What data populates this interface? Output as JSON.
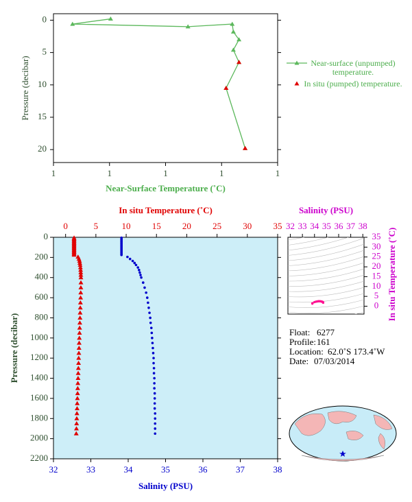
{
  "chart_data": [
    {
      "type": "line",
      "x_label": "Near-Surface Temperature (˚C)",
      "y_label": "Pressure (decibar)",
      "xlim": [
        1.0,
        1.4
      ],
      "xticks": [
        {
          "value": 1.0,
          "label": "1"
        },
        {
          "value": 1.1,
          "label": "1"
        },
        {
          "value": 1.2,
          "label": "1"
        },
        {
          "value": 1.3,
          "label": "1"
        },
        {
          "value": 1.4,
          "label": "1"
        }
      ],
      "ylim": [
        -1,
        22
      ],
      "yticks": [
        0,
        5,
        10,
        15,
        20
      ],
      "y_inverted": true,
      "legend": "right",
      "legend_text_color": "#4cae4c",
      "axis_label_color": "#4cae4c",
      "tick_label_color": "#2f4f2f",
      "series": [
        {
          "name": "Near-surface (unpumped) temperature.",
          "color": "#5cb85c",
          "marker": "triangle",
          "line": true,
          "x": [
            1.102,
            1.034,
            1.24,
            1.319,
            1.321,
            1.331,
            1.321,
            1.331,
            1.308,
            1.342
          ],
          "values": [
            -0.2,
            0.6,
            1.0,
            0.6,
            1.8,
            3.0,
            4.6,
            6.5,
            10.5,
            19.8
          ]
        },
        {
          "name": "In situ (pumped) temperature.",
          "color": "#e00000",
          "marker": "triangle",
          "line": false,
          "x": [
            1.331,
            1.308,
            1.342
          ],
          "values": [
            6.5,
            10.5,
            19.8
          ]
        }
      ]
    },
    {
      "type": "profile",
      "x_label": "Salinity (PSU)",
      "x2_label": "In situ Temperature (˚C)",
      "y_label": "Pressure (decibar)",
      "xlim": [
        32,
        38
      ],
      "xticks": [
        32,
        33,
        34,
        35,
        36,
        37,
        38
      ],
      "x2lim": [
        -2,
        35
      ],
      "x2ticks": [
        0,
        5,
        10,
        15,
        20,
        25,
        30,
        35
      ],
      "ylim": [
        0,
        2200
      ],
      "yticks": [
        0,
        200,
        400,
        600,
        800,
        1000,
        1200,
        1400,
        1600,
        1800,
        2000,
        2200
      ],
      "y_inverted": true,
      "background": "#cdeef8",
      "x_color": "#0000cc",
      "x2_color": "#e00000",
      "tick_label_color": "#2f4f2f",
      "pressure": [
        5,
        15,
        25,
        35,
        45,
        55,
        65,
        75,
        85,
        95,
        105,
        115,
        125,
        135,
        145,
        155,
        165,
        175,
        195,
        215,
        235,
        255,
        275,
        300,
        325,
        350,
        375,
        400,
        450,
        500,
        550,
        600,
        650,
        700,
        750,
        800,
        850,
        900,
        950,
        1000,
        1050,
        1100,
        1150,
        1200,
        1250,
        1300,
        1350,
        1400,
        1450,
        1500,
        1550,
        1600,
        1650,
        1700,
        1750,
        1800,
        1850,
        1900,
        1950
      ],
      "series": [
        {
          "color": "#e00000",
          "marker": "triangle",
          "axis": "x2",
          "values": [
            1.4,
            1.4,
            1.4,
            1.4,
            1.4,
            1.4,
            1.4,
            1.4,
            1.4,
            1.4,
            1.4,
            1.4,
            1.4,
            1.4,
            1.4,
            1.4,
            1.4,
            1.4,
            2.05,
            2.2,
            2.3,
            2.35,
            2.4,
            2.45,
            2.48,
            2.5,
            2.52,
            2.53,
            2.53,
            2.52,
            2.5,
            2.48,
            2.45,
            2.43,
            2.4,
            2.38,
            2.35,
            2.32,
            2.3,
            2.27,
            2.24,
            2.22,
            2.19,
            2.16,
            2.14,
            2.11,
            2.08,
            2.06,
            2.03,
            2.0,
            1.98,
            1.95,
            1.92,
            1.9,
            1.87,
            1.84,
            1.82,
            1.79,
            1.76
          ]
        },
        {
          "color": "#0000cc",
          "marker": "circle",
          "values": [
            33.82,
            33.82,
            33.82,
            33.82,
            33.82,
            33.82,
            33.82,
            33.82,
            33.82,
            33.82,
            33.82,
            33.82,
            33.82,
            33.82,
            33.82,
            33.82,
            33.82,
            33.82,
            33.98,
            34.05,
            34.12,
            34.17,
            34.21,
            34.26,
            34.29,
            34.31,
            34.33,
            34.35,
            34.4,
            34.44,
            34.48,
            34.51,
            34.53,
            34.55,
            34.57,
            34.59,
            34.6,
            34.62,
            34.63,
            34.64,
            34.65,
            34.66,
            34.67,
            34.68,
            34.68,
            34.69,
            34.69,
            34.7,
            34.7,
            34.7,
            34.71,
            34.71,
            34.71,
            34.71,
            34.72,
            34.72,
            34.72,
            34.72,
            34.72
          ]
        }
      ]
    },
    {
      "type": "scatter",
      "x_label": "Salinity (PSU)",
      "y_label": "In situ Temperature (˚C)",
      "xlim": [
        31.8,
        38.1
      ],
      "xticks": [
        32,
        33,
        34,
        35,
        36,
        37,
        38
      ],
      "ylim": [
        -4,
        35
      ],
      "yticks": [
        0,
        5,
        10,
        15,
        20,
        25,
        30,
        35
      ],
      "color": "#ff1493",
      "label_color": "#cc00cc"
    }
  ],
  "info": {
    "rows": [
      [
        "Float:",
        "6277"
      ],
      [
        "Profile:",
        "161"
      ],
      [
        "Location:",
        "62.0˚S  173.4˚W"
      ],
      [
        "Date:",
        "07/03/2014"
      ]
    ]
  }
}
